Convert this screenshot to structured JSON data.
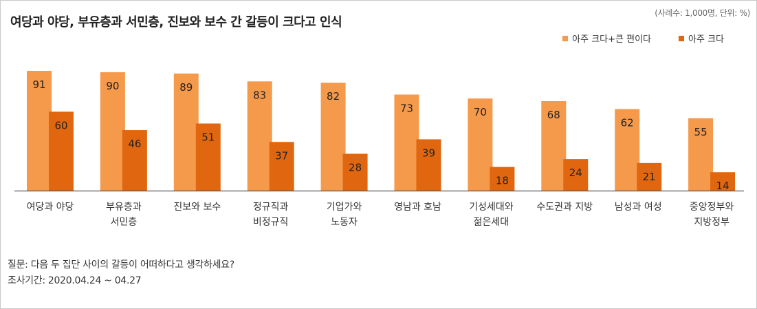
{
  "meta": "(사례수: 1,000명, 단위: %)",
  "footer": {
    "question": "질문: 다음 두 집단 사이의 갈등이 어떠하다고 생각하세요?",
    "period": "조사기간: 2020.04.24 ~ 04.27"
  },
  "colors": {
    "light": "#F5994B",
    "dark": "#E0670F",
    "axis": "#555555"
  },
  "chart_data": {
    "type": "bar",
    "title": "여당과 야당, 부유층과 서민층, 진보와 보수 간 갈등이 크다고 인식",
    "categories": [
      [
        "여당과 야당"
      ],
      [
        "부유층과",
        "서민층"
      ],
      [
        "진보와 보수"
      ],
      [
        "정규직과",
        "비정규직"
      ],
      [
        "기업가와",
        "노동자"
      ],
      [
        "영남과 호남"
      ],
      [
        "기성세대와",
        "젊은세대"
      ],
      [
        "수도권과 지방"
      ],
      [
        "남성과 여성"
      ],
      [
        "중앙정부와",
        "지방정부"
      ]
    ],
    "series": [
      {
        "name": "아주 크다+큰 편이다",
        "values": [
          91,
          90,
          89,
          83,
          82,
          73,
          70,
          68,
          62,
          55
        ]
      },
      {
        "name": "아주 크다",
        "values": [
          60,
          46,
          51,
          37,
          28,
          39,
          18,
          24,
          21,
          14
        ]
      }
    ],
    "ylim": [
      0,
      91
    ],
    "xlabel": "",
    "ylabel": ""
  }
}
